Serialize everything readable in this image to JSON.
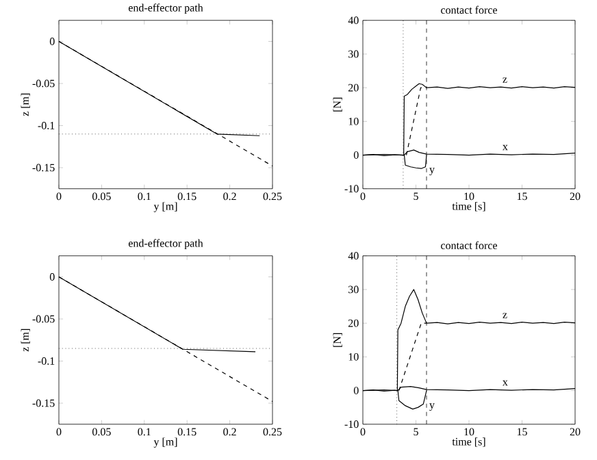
{
  "chart_data": [
    {
      "type": "line",
      "title": "end-effector path",
      "xlabel": "y [m]",
      "ylabel": "z [m]",
      "xlim": [
        0,
        0.25
      ],
      "ylim": [
        -0.175,
        0.025
      ],
      "xticks": [
        0,
        0.05,
        0.1,
        0.15,
        0.2,
        0.25
      ],
      "yticks": [
        -0.15,
        -0.1,
        -0.05,
        0
      ],
      "series": [
        {
          "color": "#000000",
          "line_style": "dashed",
          "x": [
            0,
            0.25
          ],
          "values": [
            0,
            -0.148
          ]
        },
        {
          "color": "#000000",
          "line_style": "solid",
          "x": [
            0,
            0.185,
            0.235
          ],
          "values": [
            0,
            -0.11,
            -0.112
          ]
        }
      ],
      "ref_lines": [
        {
          "axis": "y",
          "value": -0.11,
          "line_style": "dotted"
        }
      ]
    },
    {
      "type": "line",
      "title": "contact force",
      "xlabel": "time [s]",
      "ylabel": "[N]",
      "xlim": [
        0,
        20
      ],
      "ylim": [
        -10,
        40
      ],
      "xticks": [
        0,
        5,
        10,
        15,
        20
      ],
      "yticks": [
        -10,
        0,
        10,
        20,
        30,
        40
      ],
      "series": [
        {
          "color": "#000000",
          "line_style": "solid",
          "x": [
            0,
            1,
            2,
            3,
            3.85,
            3.9,
            4.2,
            4.6,
            5.0,
            5.3,
            5.6,
            6.0,
            7,
            8,
            9,
            10,
            11,
            12,
            13,
            14,
            15,
            16,
            17,
            18,
            19,
            20
          ],
          "values": [
            0,
            0.2,
            -0.2,
            0.1,
            0,
            17.5,
            18,
            19.5,
            20.5,
            21.2,
            21,
            20,
            20.2,
            19.8,
            20.2,
            19.9,
            20.3,
            20,
            20.2,
            19.9,
            20.3,
            20,
            20.2,
            19.9,
            20.3,
            20.1
          ]
        },
        {
          "color": "#000000",
          "line_style": "dashed",
          "x": [
            4.1,
            5.45,
            6
          ],
          "values": [
            0,
            20,
            20
          ]
        },
        {
          "color": "#000000",
          "line_style": "solid",
          "x": [
            0,
            2,
            3.9,
            4.2,
            4.8,
            5.3,
            6,
            8,
            10,
            12,
            14,
            16,
            18,
            20
          ],
          "values": [
            0,
            0.2,
            0,
            1,
            1.5,
            0.8,
            0.3,
            0.2,
            0,
            0.3,
            0.1,
            0.3,
            0.2,
            0.6
          ]
        },
        {
          "color": "#000000",
          "line_style": "solid",
          "x": [
            3.9,
            4.0,
            4.5,
            5,
            5.5,
            5.9,
            6
          ],
          "values": [
            0,
            -3,
            -3.5,
            -3.8,
            -4,
            -3.5,
            0
          ]
        }
      ],
      "ref_lines": [
        {
          "axis": "x",
          "value": 3.8,
          "line_style": "dotted"
        },
        {
          "axis": "x",
          "value": 6,
          "line_style": "dashed"
        }
      ],
      "annotations": [
        "z",
        "x",
        "y"
      ]
    },
    {
      "type": "line",
      "title": "end-effector path",
      "xlabel": "y [m]",
      "ylabel": "z [m]",
      "xlim": [
        0,
        0.25
      ],
      "ylim": [
        -0.175,
        0.025
      ],
      "xticks": [
        0,
        0.05,
        0.1,
        0.15,
        0.2,
        0.25
      ],
      "yticks": [
        -0.15,
        -0.1,
        -0.05,
        0
      ],
      "series": [
        {
          "color": "#000000",
          "line_style": "dashed",
          "x": [
            0,
            0.25
          ],
          "values": [
            0,
            -0.148
          ]
        },
        {
          "color": "#000000",
          "line_style": "solid",
          "x": [
            0,
            0.145,
            0.23
          ],
          "values": [
            0,
            -0.086,
            -0.089
          ]
        }
      ],
      "ref_lines": [
        {
          "axis": "y",
          "value": -0.085,
          "line_style": "dotted"
        }
      ]
    },
    {
      "type": "line",
      "title": "contact force",
      "xlabel": "time [s]",
      "ylabel": "[N]",
      "xlim": [
        0,
        20
      ],
      "ylim": [
        -10,
        40
      ],
      "xticks": [
        0,
        5,
        10,
        15,
        20
      ],
      "yticks": [
        -10,
        0,
        10,
        20,
        30,
        40
      ],
      "series": [
        {
          "color": "#000000",
          "line_style": "solid",
          "x": [
            0,
            1,
            2,
            3,
            3.25,
            3.3,
            3.6,
            4.0,
            4.4,
            4.8,
            5.2,
            5.6,
            6.0,
            7,
            8,
            9,
            10,
            11,
            12,
            13,
            14,
            15,
            16,
            17,
            18,
            19,
            20
          ],
          "values": [
            0,
            0.2,
            -0.2,
            0.1,
            0,
            18,
            20,
            25,
            28,
            30,
            27,
            23,
            20,
            20.2,
            19.8,
            20.2,
            19.9,
            20.3,
            20,
            20.2,
            19.9,
            20.3,
            20,
            20.2,
            19.9,
            20.3,
            20.1
          ]
        },
        {
          "color": "#000000",
          "line_style": "dashed",
          "x": [
            3.4,
            5.5,
            6
          ],
          "values": [
            0,
            20,
            20
          ]
        },
        {
          "color": "#000000",
          "line_style": "solid",
          "x": [
            0,
            2,
            3.3,
            3.6,
            4.5,
            5.3,
            6,
            8,
            10,
            12,
            14,
            16,
            18,
            20
          ],
          "values": [
            0,
            0.2,
            0,
            1,
            1.2,
            0.8,
            0.3,
            0.2,
            0,
            0.3,
            0.1,
            0.3,
            0.2,
            0.6
          ]
        },
        {
          "color": "#000000",
          "line_style": "solid",
          "x": [
            3.3,
            3.4,
            4,
            4.7,
            5.2,
            5.7,
            6
          ],
          "values": [
            0,
            -3,
            -4.5,
            -5.5,
            -5,
            -4,
            0
          ]
        }
      ],
      "ref_lines": [
        {
          "axis": "x",
          "value": 3.2,
          "line_style": "dotted"
        },
        {
          "axis": "x",
          "value": 6,
          "line_style": "dashed"
        }
      ],
      "annotations": [
        "z",
        "x",
        "y"
      ]
    }
  ]
}
